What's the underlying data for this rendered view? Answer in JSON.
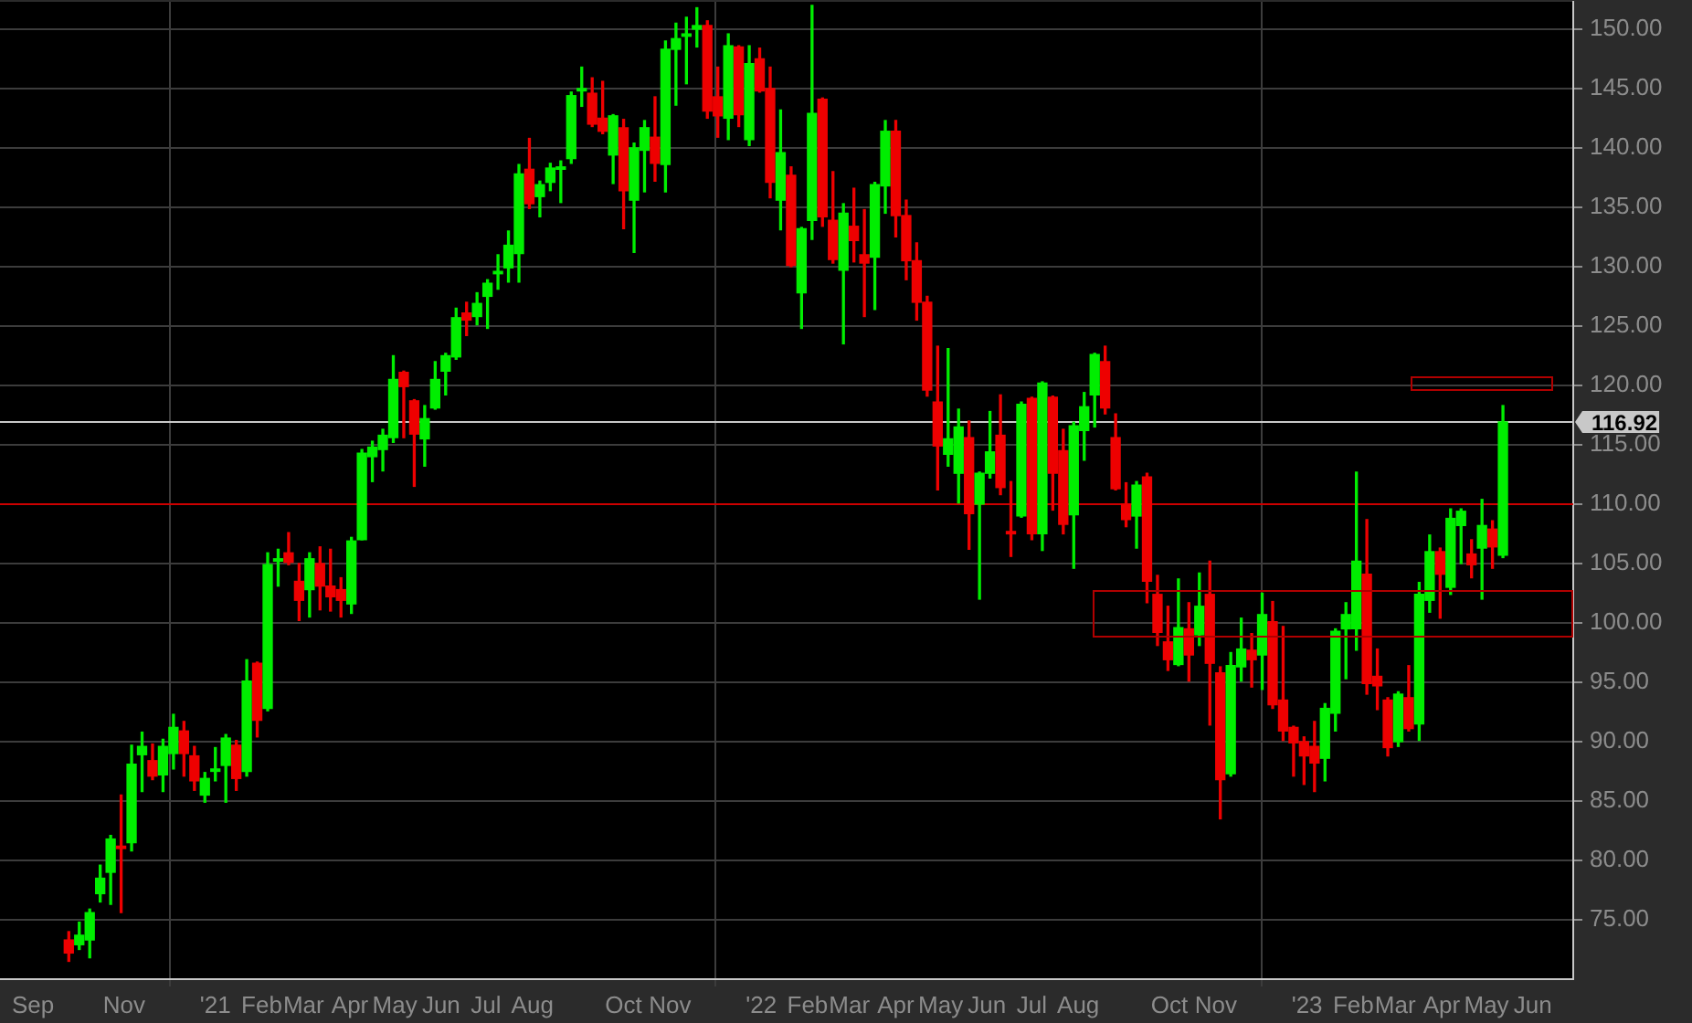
{
  "chart_data": {
    "type": "candlestick",
    "x": [
      "2020-09-25",
      "2020-10-02",
      "2020-10-09",
      "2020-10-16",
      "2020-10-23",
      "2020-10-30",
      "2020-11-06",
      "2020-11-13",
      "2020-11-20",
      "2020-11-27",
      "2020-12-04",
      "2020-12-11",
      "2020-12-18",
      "2020-12-25",
      "2021-01-01",
      "2021-01-08",
      "2021-01-15",
      "2021-01-22",
      "2021-01-29",
      "2021-02-05",
      "2021-02-12",
      "2021-02-19",
      "2021-02-26",
      "2021-03-05",
      "2021-03-12",
      "2021-03-19",
      "2021-03-26",
      "2021-04-02",
      "2021-04-09",
      "2021-04-16",
      "2021-04-23",
      "2021-04-30",
      "2021-05-07",
      "2021-05-14",
      "2021-05-21",
      "2021-05-28",
      "2021-06-04",
      "2021-06-11",
      "2021-06-18",
      "2021-06-25",
      "2021-07-02",
      "2021-07-09",
      "2021-07-16",
      "2021-07-23",
      "2021-07-30",
      "2021-08-06",
      "2021-08-13",
      "2021-08-20",
      "2021-08-27",
      "2021-09-03",
      "2021-09-10",
      "2021-09-17",
      "2021-09-24",
      "2021-10-01",
      "2021-10-08",
      "2021-10-15",
      "2021-10-22",
      "2021-10-29",
      "2021-11-05",
      "2021-11-12",
      "2021-11-19",
      "2021-11-26",
      "2021-12-03",
      "2021-12-10",
      "2021-12-17",
      "2021-12-24",
      "2021-12-31",
      "2022-01-07",
      "2022-01-14",
      "2022-01-21",
      "2022-01-28",
      "2022-02-04",
      "2022-02-11",
      "2022-02-18",
      "2022-02-25",
      "2022-03-04",
      "2022-03-11",
      "2022-03-18",
      "2022-03-25",
      "2022-04-01",
      "2022-04-08",
      "2022-04-15",
      "2022-04-22",
      "2022-04-29",
      "2022-05-06",
      "2022-05-13",
      "2022-05-20",
      "2022-05-27",
      "2022-06-03",
      "2022-06-10",
      "2022-06-17",
      "2022-06-24",
      "2022-07-01",
      "2022-07-08",
      "2022-07-15",
      "2022-07-22",
      "2022-07-29",
      "2022-08-05",
      "2022-08-12",
      "2022-08-19",
      "2022-08-26",
      "2022-09-02",
      "2022-09-09",
      "2022-09-16",
      "2022-09-23",
      "2022-09-30",
      "2022-10-07",
      "2022-10-14",
      "2022-10-21",
      "2022-10-28",
      "2022-11-04",
      "2022-11-11",
      "2022-11-18",
      "2022-11-25",
      "2022-12-02",
      "2022-12-09",
      "2022-12-16",
      "2022-12-23",
      "2022-12-30",
      "2023-01-06",
      "2023-01-13",
      "2023-01-20",
      "2023-01-27",
      "2023-02-03",
      "2023-02-10",
      "2023-02-17",
      "2023-02-24",
      "2023-03-03",
      "2023-03-10",
      "2023-03-17",
      "2023-03-24",
      "2023-03-31",
      "2023-04-07",
      "2023-04-14",
      "2023-04-21",
      "2023-04-28",
      "2023-05-05",
      "2023-05-12"
    ],
    "ohlc": [
      [
        73.3,
        74,
        71.5,
        72.2
      ],
      [
        72.9,
        74.8,
        72.5,
        73.7
      ],
      [
        73.3,
        75.9,
        71.8,
        75.6
      ],
      [
        77.2,
        79.6,
        76.5,
        78.5
      ],
      [
        79,
        82.1,
        76.3,
        81.8
      ],
      [
        81.2,
        85.5,
        75.6,
        81
      ],
      [
        81.5,
        89.7,
        80.8,
        88.1
      ],
      [
        88.9,
        90.8,
        85.8,
        89.6
      ],
      [
        88.4,
        89.8,
        86.8,
        87.1
      ],
      [
        87.2,
        90.2,
        85.8,
        89.6
      ],
      [
        89,
        92.3,
        87.7,
        91.2
      ],
      [
        90.9,
        91.7,
        87.1,
        89
      ],
      [
        88.8,
        89.6,
        85.9,
        86.7
      ],
      [
        85.5,
        87.4,
        84.9,
        86.9
      ],
      [
        87.5,
        89.5,
        86.7,
        87.7
      ],
      [
        88,
        90.6,
        84.9,
        90.3
      ],
      [
        89.7,
        90.1,
        85.9,
        86.9
      ],
      [
        87.5,
        96.9,
        87.1,
        95.1
      ],
      [
        96.6,
        96.7,
        90.4,
        91.8
      ],
      [
        92.8,
        105.9,
        92.6,
        104.9
      ],
      [
        105.2,
        106.2,
        103.1,
        105.4
      ],
      [
        105.9,
        107.6,
        104.9,
        105.1
      ],
      [
        103.5,
        105,
        100.2,
        101.9
      ],
      [
        102.8,
        105.9,
        100.5,
        105.4
      ],
      [
        105,
        106.4,
        101.1,
        103.1
      ],
      [
        103.1,
        106.2,
        101,
        102.2
      ],
      [
        102.8,
        103.8,
        100.5,
        101.9
      ],
      [
        101.6,
        107.2,
        100.8,
        106.9
      ],
      [
        107,
        114.6,
        107,
        114.3
      ],
      [
        114,
        115.3,
        111.9,
        114.8
      ],
      [
        114.6,
        116.3,
        112.8,
        115.8
      ],
      [
        115.6,
        122.5,
        115.2,
        120.5
      ],
      [
        121.1,
        121.2,
        115.6,
        119.9
      ],
      [
        118.7,
        118.8,
        111.5,
        115.9
      ],
      [
        115.5,
        118.3,
        113.2,
        117.2
      ],
      [
        118.1,
        122,
        118,
        120.5
      ],
      [
        121.2,
        122.7,
        119.2,
        122.5
      ],
      [
        122.4,
        126.5,
        122.2,
        125.7
      ],
      [
        126.1,
        127,
        124.2,
        125.5
      ],
      [
        125.8,
        127.8,
        125.1,
        126.9
      ],
      [
        127.5,
        128.9,
        124.8,
        128.6
      ],
      [
        129.4,
        131,
        128.1,
        129.6
      ],
      [
        129.9,
        133,
        128.7,
        131.8
      ],
      [
        131.1,
        138.6,
        128.7,
        137.8
      ],
      [
        138.2,
        140.8,
        134.9,
        135.3
      ],
      [
        135.9,
        137.2,
        134.2,
        136.9
      ],
      [
        137.1,
        138.7,
        136.4,
        138.3
      ],
      [
        138.2,
        138.9,
        135.4,
        138.4
      ],
      [
        139.1,
        144.7,
        138.7,
        144.4
      ],
      [
        144.8,
        146.8,
        143.5,
        145
      ],
      [
        144.6,
        145.9,
        141.8,
        142
      ],
      [
        142.5,
        145.6,
        141.2,
        141.4
      ],
      [
        139.4,
        142.8,
        137,
        142.7
      ],
      [
        141.7,
        142.4,
        133.2,
        136.4
      ],
      [
        135.6,
        140.4,
        131.2,
        140
      ],
      [
        139.8,
        142.3,
        136.3,
        141.7
      ],
      [
        140.9,
        144.3,
        137.2,
        138.7
      ],
      [
        138.6,
        149,
        136.3,
        148.3
      ],
      [
        148.3,
        150.5,
        143.6,
        149.2
      ],
      [
        149.4,
        151,
        145.4,
        149.6
      ],
      [
        150,
        151.8,
        148.5,
        150.3
      ],
      [
        150.3,
        150.7,
        142.5,
        143.1
      ],
      [
        144.3,
        146.8,
        140.9,
        142.7
      ],
      [
        142.5,
        149.6,
        140.7,
        148.6
      ],
      [
        148.5,
        148.6,
        141.8,
        142.8
      ],
      [
        140.7,
        148.6,
        140.2,
        147.1
      ],
      [
        147.5,
        148.4,
        144.7,
        144.8
      ],
      [
        145,
        146.8,
        135.8,
        137.1
      ],
      [
        135.6,
        143.2,
        133.1,
        139.6
      ],
      [
        137.7,
        138.4,
        130,
        130.1
      ],
      [
        127.8,
        133.3,
        124.8,
        133.2
      ],
      [
        133.9,
        152,
        132.3,
        142.9
      ],
      [
        144.1,
        144.2,
        133.4,
        134.2
      ],
      [
        133.9,
        138,
        130.3,
        130.6
      ],
      [
        129.7,
        135.3,
        123.5,
        134.5
      ],
      [
        133.4,
        136.6,
        130.4,
        132.2
      ],
      [
        131,
        134.8,
        125.8,
        130.3
      ],
      [
        130.8,
        137.1,
        126.4,
        136.9
      ],
      [
        136.8,
        142.3,
        134.5,
        141.4
      ],
      [
        141.4,
        142.3,
        132.5,
        134.3
      ],
      [
        134.3,
        135.6,
        128.9,
        130.5
      ],
      [
        130.5,
        132,
        125.5,
        127
      ],
      [
        127,
        127.5,
        119.1,
        119.6
      ],
      [
        118.6,
        123.3,
        111.2,
        114.9
      ],
      [
        114.2,
        123.1,
        113.2,
        115.5
      ],
      [
        112.6,
        118,
        110.1,
        116.5
      ],
      [
        115.6,
        117,
        106.2,
        109.2
      ],
      [
        110,
        112.7,
        102,
        112.6
      ],
      [
        112.6,
        117.8,
        112.2,
        114.4
      ],
      [
        115.8,
        119.2,
        110.8,
        111.4
      ],
      [
        107.7,
        111.9,
        105.6,
        107.5
      ],
      [
        109,
        118.6,
        108.9,
        118.4
      ],
      [
        118.9,
        119,
        107,
        107.5
      ],
      [
        107.5,
        120.3,
        106.1,
        120.2
      ],
      [
        119,
        119.1,
        109.5,
        112.6
      ],
      [
        114.5,
        116.3,
        107.5,
        108.3
      ],
      [
        109.1,
        116.9,
        104.6,
        116.6
      ],
      [
        116.2,
        119.4,
        113.7,
        118.2
      ],
      [
        119.2,
        122.7,
        116.5,
        122.6
      ],
      [
        122,
        123.3,
        117.6,
        118.1
      ],
      [
        115.6,
        117.6,
        111.2,
        111.3
      ],
      [
        110,
        111.8,
        108.1,
        108.7
      ],
      [
        109,
        111.9,
        106.3,
        111.6
      ],
      [
        112.3,
        112.6,
        101.7,
        103.5
      ],
      [
        102.4,
        104,
        98.1,
        99.2
      ],
      [
        98.4,
        101.4,
        96,
        96.9
      ],
      [
        96.5,
        103.7,
        96.4,
        99.6
      ],
      [
        99.5,
        101.7,
        95.1,
        97.3
      ],
      [
        99,
        104.2,
        98.1,
        101.4
      ],
      [
        102.4,
        105.2,
        91.4,
        96.6
      ],
      [
        95.8,
        96.3,
        83.5,
        86.8
      ],
      [
        87.3,
        97.5,
        87.1,
        96.4
      ],
      [
        96.3,
        100.4,
        95.1,
        97.8
      ],
      [
        97.7,
        99.1,
        94.6,
        96.9
      ],
      [
        97.3,
        102.5,
        94.4,
        100.7
      ],
      [
        100.1,
        101.8,
        92.8,
        93.1
      ],
      [
        93.5,
        99.7,
        90.1,
        90.9
      ],
      [
        91.2,
        91.3,
        87.1,
        89.9
      ],
      [
        90,
        90.4,
        86.4,
        88.8
      ],
      [
        89.6,
        91.7,
        85.8,
        88.2
      ],
      [
        88.6,
        93.2,
        86.7,
        92.8
      ],
      [
        92.4,
        99.5,
        90.9,
        99.3
      ],
      [
        99.5,
        101.7,
        95.3,
        100.7
      ],
      [
        99.5,
        112.7,
        97.7,
        105.2
      ],
      [
        104.1,
        108.7,
        94,
        94.9
      ],
      [
        95.5,
        97.8,
        92.7,
        94.7
      ],
      [
        93.5,
        93.7,
        88.8,
        89.5
      ],
      [
        90,
        94.2,
        89.6,
        94
      ],
      [
        93.7,
        96.4,
        90.9,
        91.1
      ],
      [
        91.5,
        103.4,
        90.1,
        102.4
      ],
      [
        101.9,
        107.4,
        100.9,
        106
      ],
      [
        106,
        106.3,
        100.4,
        104.1
      ],
      [
        103,
        109.6,
        102.4,
        108.8
      ],
      [
        108.2,
        109.6,
        105,
        109.4
      ],
      [
        105.8,
        107,
        103.8,
        104.9
      ],
      [
        106.3,
        110.4,
        102,
        108.2
      ],
      [
        107.9,
        108.6,
        104.6,
        106.4
      ],
      [
        105.7,
        118.3,
        105.5,
        116.92
      ]
    ],
    "xlim": [
      "2020-08-10",
      "2023-06-28"
    ],
    "xticks": [
      {
        "value": "2020-09-01",
        "label": "Sep"
      },
      {
        "value": "2020-11-01",
        "label": "Nov"
      },
      {
        "value": "2021-01-01",
        "label": "'21"
      },
      {
        "value": "2021-02-01",
        "label": "Feb"
      },
      {
        "value": "2021-03-01",
        "label": "Mar"
      },
      {
        "value": "2021-04-01",
        "label": "Apr"
      },
      {
        "value": "2021-05-01",
        "label": "May"
      },
      {
        "value": "2021-06-01",
        "label": "Jun"
      },
      {
        "value": "2021-07-01",
        "label": "Jul"
      },
      {
        "value": "2021-08-01",
        "label": "Aug"
      },
      {
        "value": "2021-10-01",
        "label": "Oct"
      },
      {
        "value": "2021-11-01",
        "label": "Nov"
      },
      {
        "value": "2022-01-01",
        "label": "'22"
      },
      {
        "value": "2022-02-01",
        "label": "Feb"
      },
      {
        "value": "2022-03-01",
        "label": "Mar"
      },
      {
        "value": "2022-04-01",
        "label": "Apr"
      },
      {
        "value": "2022-05-01",
        "label": "May"
      },
      {
        "value": "2022-06-01",
        "label": "Jun"
      },
      {
        "value": "2022-07-01",
        "label": "Jul"
      },
      {
        "value": "2022-08-01",
        "label": "Aug"
      },
      {
        "value": "2022-10-01",
        "label": "Oct"
      },
      {
        "value": "2022-11-01",
        "label": "Nov"
      },
      {
        "value": "2023-01-01",
        "label": "'23"
      },
      {
        "value": "2023-02-01",
        "label": "Feb"
      },
      {
        "value": "2023-03-01",
        "label": "Mar"
      },
      {
        "value": "2023-04-01",
        "label": "Apr"
      },
      {
        "value": "2023-05-01",
        "label": "May"
      },
      {
        "value": "2023-06-01",
        "label": "Jun"
      }
    ],
    "ylim": [
      70,
      152.3
    ],
    "yticks": [
      {
        "value": 75,
        "label": "75.00"
      },
      {
        "value": 80,
        "label": "80.00"
      },
      {
        "value": 85,
        "label": "85.00"
      },
      {
        "value": 90,
        "label": "90.00"
      },
      {
        "value": 95,
        "label": "95.00"
      },
      {
        "value": 100,
        "label": "100.00"
      },
      {
        "value": 105,
        "label": "105.00"
      },
      {
        "value": 110,
        "label": "110.00"
      },
      {
        "value": 115,
        "label": "115.00"
      },
      {
        "value": 120,
        "label": "120.00"
      },
      {
        "value": 125,
        "label": "125.00"
      },
      {
        "value": 130,
        "label": "130.00"
      },
      {
        "value": 135,
        "label": "135.00"
      },
      {
        "value": 140,
        "label": "140.00"
      },
      {
        "value": 145,
        "label": "145.00"
      },
      {
        "value": 150,
        "label": "150.00"
      }
    ],
    "grid": true,
    "ref_lines": [
      {
        "axis": "y",
        "value": 110,
        "color": "#cc0000"
      },
      {
        "axis": "y",
        "value": 116.92,
        "label": "116.92",
        "color": "#c8c8c8"
      }
    ]
  }
}
